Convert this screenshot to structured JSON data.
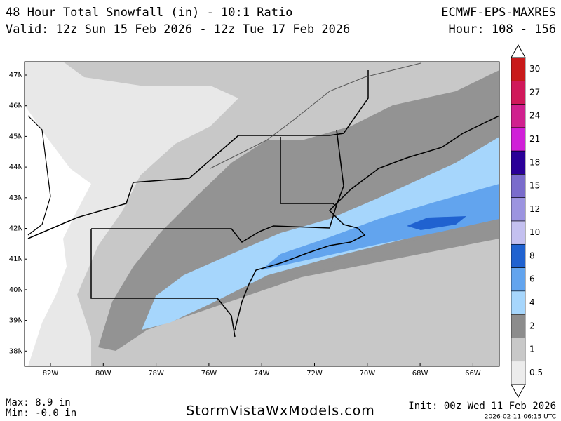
{
  "header": {
    "title": "48 Hour Total Snowfall (in) - 10:1 Ratio",
    "model": "ECMWF-EPS-MAXRES",
    "valid": "Valid: 12z Sun 15 Feb 2026 - 12z Tue 17 Feb 2026",
    "hour": "Hour: 108 - 156"
  },
  "lat_labels": [
    "47N",
    "46N",
    "45N",
    "44N",
    "43N",
    "42N",
    "41N",
    "40N",
    "39N",
    "38N"
  ],
  "lon_labels": [
    "82W",
    "80W",
    "78W",
    "76W",
    "74W",
    "72W",
    "70W",
    "68W",
    "66W"
  ],
  "legend": {
    "levels": [
      {
        "label": "30",
        "color": "#c81a1a"
      },
      {
        "label": "27",
        "color": "#d0185a"
      },
      {
        "label": "24",
        "color": "#d0208e"
      },
      {
        "label": "21",
        "color": "#d020d8"
      },
      {
        "label": "18",
        "color": "#2a0098"
      },
      {
        "label": "15",
        "color": "#7a6ccc"
      },
      {
        "label": "12",
        "color": "#9c94e0"
      },
      {
        "label": "10",
        "color": "#c4c0f0"
      },
      {
        "label": "8",
        "color": "#2062d0"
      },
      {
        "label": "6",
        "color": "#62a4ee"
      },
      {
        "label": "4",
        "color": "#a6d6fc"
      },
      {
        "label": "2",
        "color": "#8c8c8c"
      },
      {
        "label": "1",
        "color": "#c8c8c8"
      },
      {
        "label": "0.5",
        "color": "#ececec"
      }
    ]
  },
  "footer": {
    "max": "Max: 8.9 in",
    "min": "Min: -0.0 in",
    "site": "StormVistaWxModels.com",
    "init": "Init: 00z Wed 11 Feb 2026",
    "timestamp": "2026-02-11-06:15 UTC"
  }
}
